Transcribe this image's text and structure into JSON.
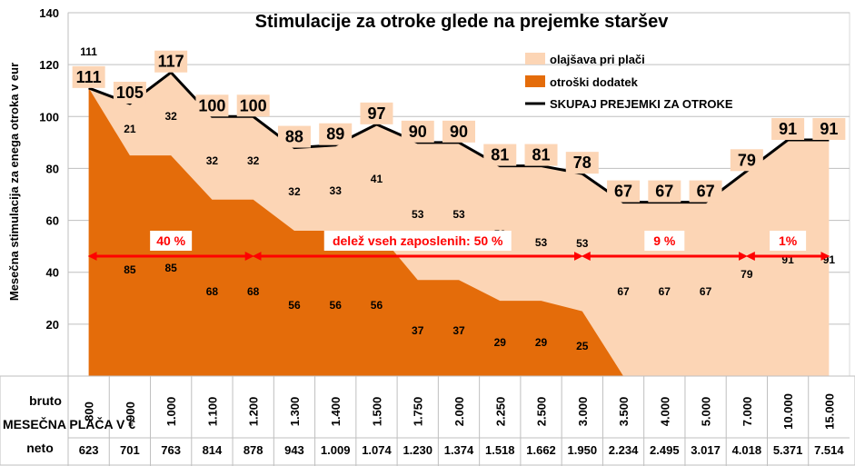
{
  "chart_data": {
    "type": "area",
    "title": "Stimulacije za otroke glede na prejemke staršev",
    "ylabel": "Mesečna stimulacija za enega otroka v eur",
    "ylim": [
      0,
      140
    ],
    "yticks": [
      20,
      40,
      60,
      80,
      100,
      120,
      140
    ],
    "grid": true,
    "legend_position": "top-right",
    "categories": [
      "800",
      "900",
      "1.000",
      "1.100",
      "1.200",
      "1.300",
      "1.400",
      "1.500",
      "1.750",
      "2.000",
      "2.250",
      "2.500",
      "3.000",
      "3.500",
      "4.000",
      "5.000",
      "7.000",
      "10.000",
      "15.000"
    ],
    "neto": [
      "623",
      "701",
      "763",
      "814",
      "878",
      "943",
      "1.009",
      "1.074",
      "1.230",
      "1.374",
      "1.518",
      "1.662",
      "1.950",
      "2.234",
      "2.495",
      "3.017",
      "4.018",
      "5.371",
      "7.514"
    ],
    "row_labels": {
      "bruto": "bruto",
      "axis_title": "MESEČNA PLAČA V €",
      "neto": "neto"
    },
    "series": [
      {
        "name": "olajšava pri plači",
        "color": "#fcd5b5",
        "values": [
          null,
          21,
          32,
          32,
          32,
          32,
          33,
          41,
          53,
          53,
          53,
          53,
          53,
          67,
          67,
          67,
          79,
          91,
          91
        ]
      },
      {
        "name": "otroški dodatek",
        "color": "#e46c0a",
        "values": [
          111,
          85,
          85,
          68,
          68,
          56,
          56,
          56,
          37,
          37,
          29,
          29,
          25,
          0,
          0,
          0,
          0,
          0,
          0
        ]
      },
      {
        "name": "SKUPAJ PREJEMKI ZA OTROKE",
        "color": "#000000",
        "values": [
          111,
          105,
          117,
          100,
          100,
          88,
          89,
          97,
          90,
          90,
          81,
          81,
          78,
          67,
          67,
          67,
          79,
          91,
          91
        ]
      }
    ],
    "olajsava_labels": [
      "111",
      "21",
      "32",
      "32",
      "32",
      "32",
      "33",
      "41",
      "53",
      "53",
      "53",
      "53",
      "53",
      "67",
      "67",
      "67",
      "79",
      "91",
      "91"
    ],
    "dodatek_labels": [
      "",
      "85",
      "85",
      "68",
      "68",
      "56",
      "56",
      "56",
      "37",
      "37",
      "29",
      "29",
      "25",
      "",
      "",
      "",
      "",
      "",
      ""
    ],
    "annotations": [
      {
        "text": "40 %",
        "from": "800",
        "to": "1.200"
      },
      {
        "text": "delež vseh zaposlenih: 50 %",
        "from": "1.200",
        "to": "3.000"
      },
      {
        "text": "9 %",
        "from": "3.000",
        "to": "7.000"
      },
      {
        "text": "1%",
        "from": "7.000",
        "to": "15.000"
      }
    ]
  }
}
